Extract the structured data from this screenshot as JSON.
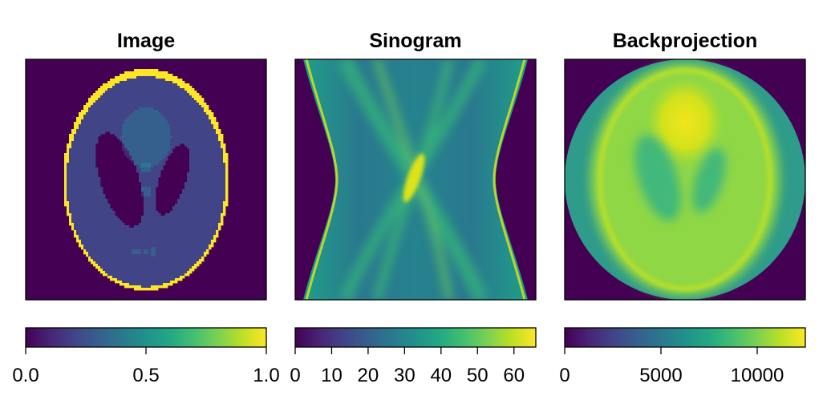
{
  "chart_data": [
    {
      "type": "heatmap",
      "title": "Image",
      "description_colormap": "viridis",
      "colorbar": {
        "range": [
          0.0,
          1.0
        ],
        "ticks": [
          0.0,
          0.5,
          1.0
        ],
        "tick_labels": [
          "0.0",
          "0.5",
          "1.0"
        ]
      },
      "phantom_ellipses": [
        {
          "value": 1.0,
          "cx": 0.0,
          "cy": 0.0,
          "a": 0.69,
          "b": 0.92,
          "angle": 0
        },
        {
          "value": -0.8,
          "cx": 0.0,
          "cy": -0.0184,
          "a": 0.6624,
          "b": 0.874,
          "angle": 0
        },
        {
          "value": -0.2,
          "cx": 0.22,
          "cy": 0.0,
          "a": 0.11,
          "b": 0.31,
          "angle": -18
        },
        {
          "value": -0.2,
          "cx": -0.22,
          "cy": 0.0,
          "a": 0.16,
          "b": 0.41,
          "angle": 18
        },
        {
          "value": 0.1,
          "cx": 0.0,
          "cy": 0.35,
          "a": 0.21,
          "b": 0.25,
          "angle": 0
        },
        {
          "value": 0.1,
          "cx": 0.0,
          "cy": 0.1,
          "a": 0.046,
          "b": 0.046,
          "angle": 0
        },
        {
          "value": 0.1,
          "cx": 0.0,
          "cy": -0.1,
          "a": 0.046,
          "b": 0.046,
          "angle": 0
        },
        {
          "value": 0.1,
          "cx": -0.08,
          "cy": -0.605,
          "a": 0.046,
          "b": 0.023,
          "angle": 0
        },
        {
          "value": 0.1,
          "cx": 0.0,
          "cy": -0.606,
          "a": 0.023,
          "b": 0.023,
          "angle": 0
        },
        {
          "value": 0.1,
          "cx": 0.06,
          "cy": -0.605,
          "a": 0.023,
          "b": 0.046,
          "angle": 0
        }
      ]
    },
    {
      "type": "heatmap",
      "title": "Sinogram",
      "colorbar": {
        "range": [
          0,
          66
        ],
        "ticks": [
          0,
          10,
          20,
          30,
          40,
          50,
          60
        ],
        "tick_labels": [
          "0",
          "10",
          "20",
          "30",
          "40",
          "50",
          "60"
        ]
      }
    },
    {
      "type": "heatmap",
      "title": "Backprojection",
      "colorbar": {
        "range": [
          0,
          12500
        ],
        "ticks": [
          0,
          5000,
          10000
        ],
        "tick_labels": [
          "0",
          "5000",
          "10000"
        ]
      }
    }
  ]
}
